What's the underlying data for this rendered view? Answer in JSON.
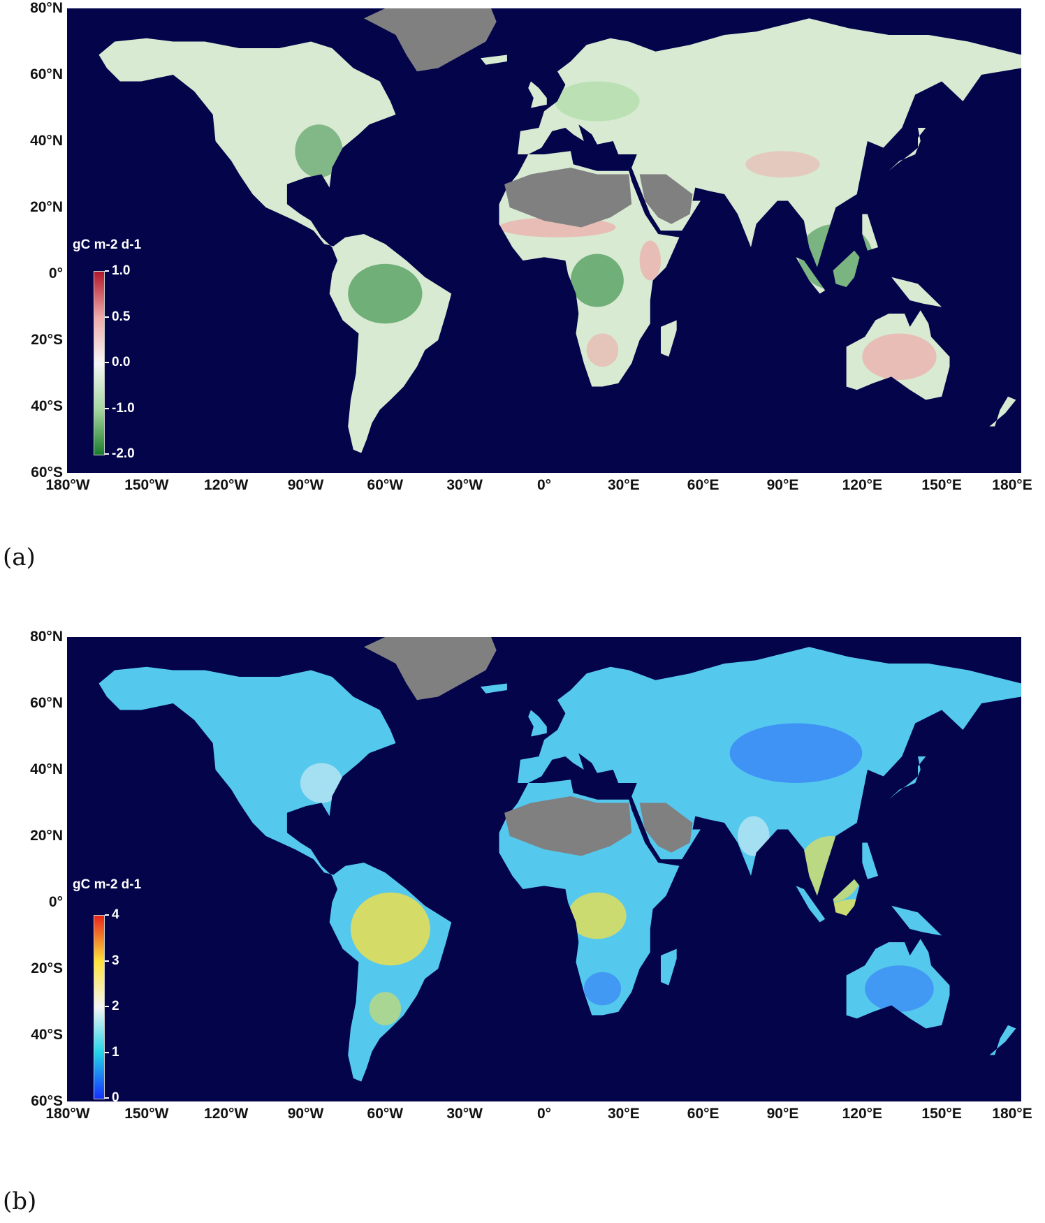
{
  "panels": [
    {
      "letter": "(a)",
      "legend": {
        "title": "gC m-2 d-1",
        "ticks": [
          "1.0",
          "0.5",
          "0.0",
          "-1.0",
          "-2.0"
        ],
        "colors": [
          "#b2182b",
          "#efaaaa",
          "#f7f7f7",
          "#a6d8a0",
          "#1b7d2e"
        ]
      }
    },
    {
      "letter": "(b)",
      "legend": {
        "title": "gC m-2 d-1",
        "ticks": [
          "4",
          "3",
          "2",
          "1",
          "0"
        ],
        "colors": [
          "#e8261c",
          "#ffe33a",
          "#f5f5f5",
          "#22d3e8",
          "#1530ff"
        ]
      }
    }
  ],
  "axes": {
    "lat_labels": [
      "80°N",
      "60°N",
      "40°N",
      "20°N",
      "0°",
      "20°S",
      "40°S",
      "60°S"
    ],
    "lon_labels": [
      "180°W",
      "150°W",
      "120°W",
      "90°W",
      "60°W",
      "30°W",
      "0°",
      "30°E",
      "60°E",
      "90°E",
      "120°E",
      "150°E",
      "180°E"
    ],
    "lat_range": [
      -60,
      80
    ],
    "lon_range": [
      -180,
      180
    ]
  },
  "colors": {
    "ocean": "#03044a",
    "no_data": "#808080",
    "panel_a_land": "#d8ead2",
    "panel_b_land": "#55c8ee"
  }
}
